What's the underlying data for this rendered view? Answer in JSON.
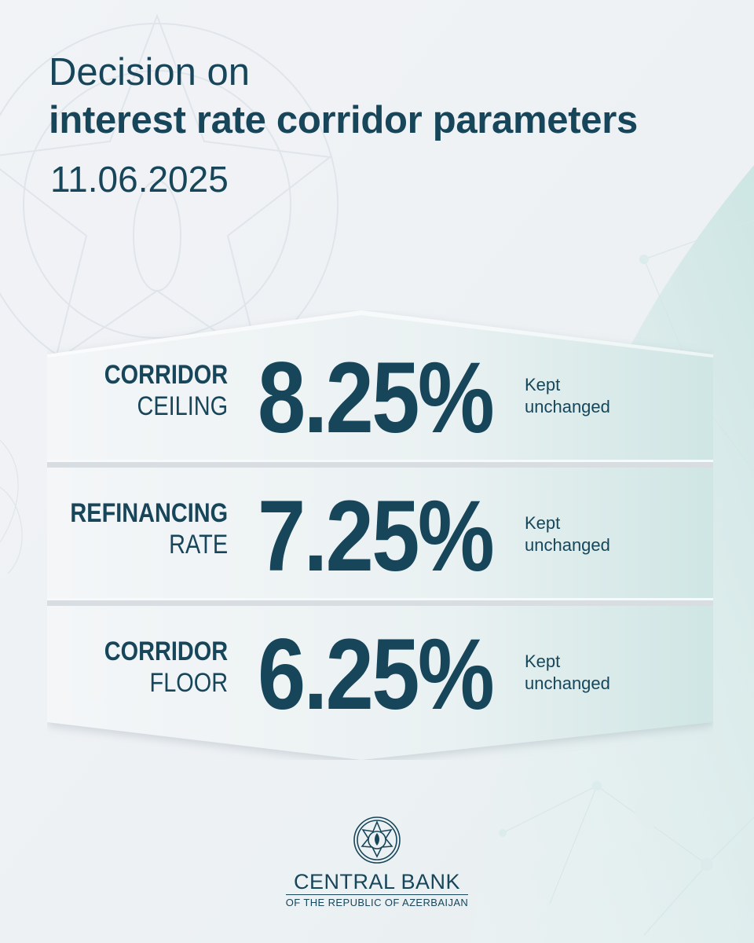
{
  "title": {
    "line1": "Decision on",
    "line2": "interest rate corridor parameters"
  },
  "date": "11.06.2025",
  "rates": [
    {
      "label_line1": "CORRIDOR",
      "label_line2": "CEILING",
      "value": "8.25%",
      "status_line1": "Kept",
      "status_line2": "unchanged"
    },
    {
      "label_line1": "REFINANCING",
      "label_line2": "RATE",
      "value": "7.25%",
      "status_line1": "Kept",
      "status_line2": "unchanged"
    },
    {
      "label_line1": "CORRIDOR",
      "label_line2": "FLOOR",
      "value": "6.25%",
      "status_line1": "Kept",
      "status_line2": "unchanged"
    }
  ],
  "bank": {
    "name": "CENTRAL BANK",
    "subtitle": "OF THE REPUBLIC OF AZERBAIJAN"
  },
  "colors": {
    "text": "#17465a",
    "background": "#eef1f4",
    "accent": "#cfe6e4"
  },
  "icons": {
    "emblem": "azerbaijan-emblem-icon"
  }
}
